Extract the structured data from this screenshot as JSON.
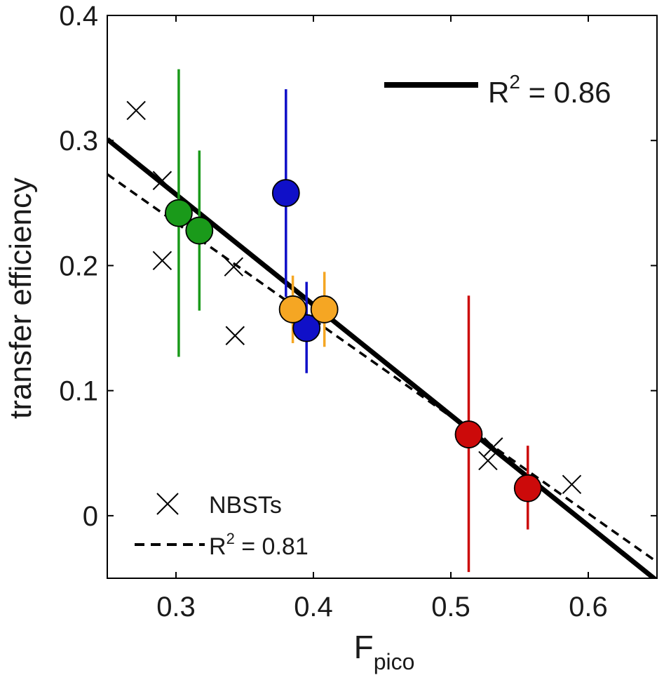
{
  "chart_data": {
    "type": "scatter",
    "title": "",
    "xlabel": "F",
    "xlabel_sub": "pico",
    "ylabel": "transfer efficiency",
    "xlim": [
      0.25,
      0.65
    ],
    "ylim": [
      -0.05,
      0.4
    ],
    "xticks": [
      0.3,
      0.4,
      0.5,
      0.6
    ],
    "yticks": [
      0,
      0.1,
      0.2,
      0.3,
      0.4
    ],
    "xtick_labels": [
      "0.3",
      "0.4",
      "0.5",
      "0.6"
    ],
    "ytick_labels": [
      "0",
      "0.1",
      "0.2",
      "0.3",
      "0.4"
    ],
    "grid": false,
    "series": [
      {
        "name": "green",
        "color": "#1a9a1a",
        "points": [
          {
            "x": 0.302,
            "y": 0.242,
            "lo": 0.127,
            "hi": 0.357
          },
          {
            "x": 0.317,
            "y": 0.228,
            "lo": 0.164,
            "hi": 0.292
          }
        ]
      },
      {
        "name": "blue",
        "color": "#1010c8",
        "points": [
          {
            "x": 0.38,
            "y": 0.258,
            "lo": 0.175,
            "hi": 0.341
          },
          {
            "x": 0.395,
            "y": 0.15,
            "lo": 0.114,
            "hi": 0.187
          }
        ]
      },
      {
        "name": "orange",
        "color": "#f5a623",
        "points": [
          {
            "x": 0.385,
            "y": 0.165,
            "lo": 0.138,
            "hi": 0.192
          },
          {
            "x": 0.408,
            "y": 0.165,
            "lo": 0.135,
            "hi": 0.195
          }
        ]
      },
      {
        "name": "red",
        "color": "#cc0a0a",
        "points": [
          {
            "x": 0.513,
            "y": 0.065,
            "lo": -0.045,
            "hi": 0.176
          },
          {
            "x": 0.556,
            "y": 0.022,
            "lo": -0.011,
            "hi": 0.056
          }
        ]
      }
    ],
    "nbsts": {
      "name": "NBSTs",
      "points": [
        {
          "x": 0.271,
          "y": 0.324
        },
        {
          "x": 0.29,
          "y": 0.268
        },
        {
          "x": 0.29,
          "y": 0.204
        },
        {
          "x": 0.342,
          "y": 0.199
        },
        {
          "x": 0.343,
          "y": 0.144
        },
        {
          "x": 0.531,
          "y": 0.055
        },
        {
          "x": 0.527,
          "y": 0.044
        },
        {
          "x": 0.588,
          "y": 0.025
        }
      ]
    },
    "fit_lines": [
      {
        "name": "solid",
        "style": "solid",
        "x": [
          0.25,
          0.65
        ],
        "y": [
          0.301,
          -0.052
        ]
      },
      {
        "name": "dashed",
        "style": "dashed",
        "x": [
          0.25,
          0.65
        ],
        "y": [
          0.273,
          -0.037
        ]
      }
    ],
    "legend": {
      "placement_solid": "top-right",
      "placement_markers": "bottom-left",
      "solid_label_base": "R",
      "solid_label_exp": "2",
      "solid_label_value": " = 0.86",
      "nbsts_label": "NBSTs",
      "dashed_label_base": "R",
      "dashed_label_exp": "2",
      "dashed_label_value": " = 0.81"
    }
  }
}
